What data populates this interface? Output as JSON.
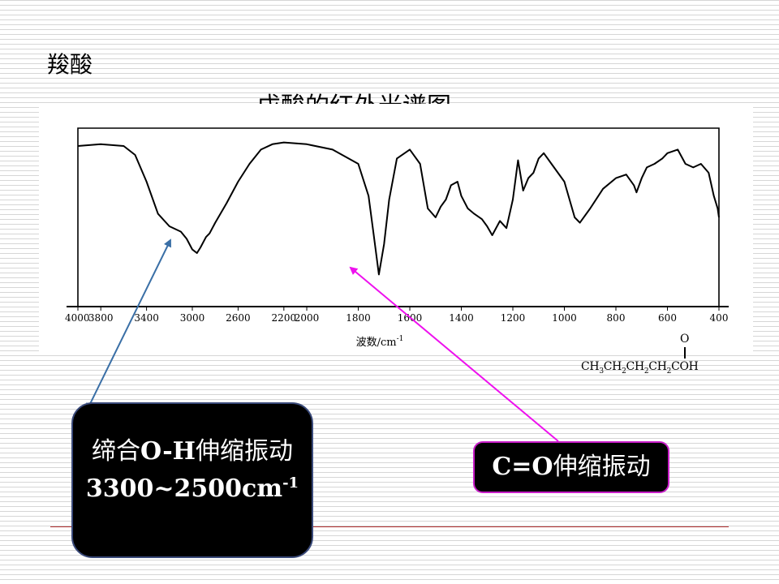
{
  "slide": {
    "heading": "羧酸",
    "spectrum_title": "戊酸的红外光谱图"
  },
  "chart_data": {
    "type": "line",
    "title": "戊酸的红外光谱图",
    "xlabel": "波数/cm",
    "xlabel_superscript": "-1",
    "x_ticks": [
      4000,
      3800,
      3400,
      3000,
      2600,
      2200,
      2000,
      1800,
      1600,
      1400,
      1200,
      1000,
      800,
      600,
      400
    ],
    "x_tick_labels": [
      "4000",
      "3800",
      "3400",
      "3000",
      "2600",
      "2200",
      "2000",
      "1800",
      "1600",
      "1400",
      "1200",
      "1000",
      "800",
      "600",
      "400"
    ],
    "transmittance_range": [
      0,
      100
    ],
    "grid": false,
    "series": [
      {
        "points": [
          [
            4000,
            90
          ],
          [
            3800,
            91
          ],
          [
            3600,
            90
          ],
          [
            3500,
            85
          ],
          [
            3400,
            70
          ],
          [
            3300,
            52
          ],
          [
            3200,
            45
          ],
          [
            3100,
            42
          ],
          [
            3050,
            38
          ],
          [
            3000,
            32
          ],
          [
            2960,
            30
          ],
          [
            2930,
            33
          ],
          [
            2880,
            39
          ],
          [
            2850,
            41
          ],
          [
            2800,
            47
          ],
          [
            2700,
            58
          ],
          [
            2600,
            70
          ],
          [
            2500,
            80
          ],
          [
            2400,
            88
          ],
          [
            2300,
            91
          ],
          [
            2200,
            92
          ],
          [
            2000,
            91
          ],
          [
            1900,
            88
          ],
          [
            1800,
            80
          ],
          [
            1760,
            62
          ],
          [
            1740,
            40
          ],
          [
            1720,
            18
          ],
          [
            1700,
            35
          ],
          [
            1680,
            60
          ],
          [
            1650,
            83
          ],
          [
            1600,
            88
          ],
          [
            1560,
            80
          ],
          [
            1530,
            55
          ],
          [
            1500,
            50
          ],
          [
            1480,
            56
          ],
          [
            1460,
            60
          ],
          [
            1440,
            68
          ],
          [
            1415,
            70
          ],
          [
            1400,
            62
          ],
          [
            1375,
            55
          ],
          [
            1350,
            52
          ],
          [
            1320,
            49
          ],
          [
            1300,
            45
          ],
          [
            1280,
            40
          ],
          [
            1250,
            48
          ],
          [
            1225,
            44
          ],
          [
            1200,
            60
          ],
          [
            1180,
            82
          ],
          [
            1160,
            65
          ],
          [
            1140,
            72
          ],
          [
            1120,
            75
          ],
          [
            1100,
            83
          ],
          [
            1080,
            86
          ],
          [
            1050,
            80
          ],
          [
            1000,
            70
          ],
          [
            960,
            50
          ],
          [
            940,
            47
          ],
          [
            900,
            55
          ],
          [
            850,
            66
          ],
          [
            800,
            72
          ],
          [
            760,
            74
          ],
          [
            730,
            68
          ],
          [
            720,
            64
          ],
          [
            700,
            72
          ],
          [
            680,
            78
          ],
          [
            650,
            80
          ],
          [
            620,
            83
          ],
          [
            600,
            86
          ],
          [
            560,
            88
          ],
          [
            530,
            80
          ],
          [
            500,
            78
          ],
          [
            470,
            80
          ],
          [
            440,
            75
          ],
          [
            420,
            62
          ],
          [
            405,
            55
          ],
          [
            400,
            50
          ]
        ]
      }
    ]
  },
  "molecule": {
    "oxygen": "O",
    "formula_parts": [
      "CH",
      "3",
      "CH",
      "2",
      "CH",
      "2",
      "CH",
      "2",
      "COH"
    ]
  },
  "annotations": {
    "oh": {
      "line1_pre": "缔合",
      "line1_bold": "O-H",
      "line1_post": "伸缩振动",
      "line2": "3300~2500cm",
      "line2_sup": "-1"
    },
    "co": {
      "bold": "C=O",
      "text": "伸缩振动"
    }
  },
  "colors": {
    "oh_arrow": "#3a6fa6",
    "co_arrow": "#ee11ee"
  }
}
